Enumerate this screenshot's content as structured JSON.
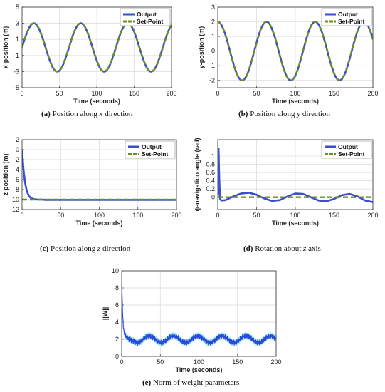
{
  "captions": [
    {
      "letter": "(a)",
      "text": " Position along ",
      "var": "x",
      "rest": " direction"
    },
    {
      "letter": "(b)",
      "text": " Position along ",
      "var": "y",
      "rest": " direction"
    },
    {
      "letter": "(c)",
      "text": " Position along ",
      "var": "z",
      "rest": " direction"
    },
    {
      "letter": "(d)",
      "text": " Rotation about ",
      "var": "z",
      "rest": " axis"
    },
    {
      "letter": "(e)",
      "text": " Norm of weight parameters",
      "var": "",
      "rest": ""
    }
  ],
  "colors": {
    "output": "#3a4fd0",
    "setpoint": "#6b8e23",
    "weights": "#2a4bd8",
    "weights_band": "#7fe7ee",
    "grid": "#d9d9d9"
  },
  "chart_data": [
    {
      "type": "line",
      "xlabel": "Time (seconds)",
      "ylabel": "x-position (m)",
      "xlim": [
        0,
        200
      ],
      "ylim": [
        -5,
        5
      ],
      "xticks": [
        0,
        50,
        100,
        150,
        200
      ],
      "yticks": [
        -5,
        -3,
        -1,
        1,
        3,
        5
      ],
      "grid": true,
      "legend": "top-right",
      "series": [
        {
          "name": "Output",
          "style": "solid",
          "amplitude": 3,
          "period": 62.8,
          "phase": "sin",
          "x": [
            0,
            15.7,
            31.4,
            47.1,
            62.8,
            78.5,
            94.2,
            109.9,
            125.6,
            141.3,
            157,
            172.7,
            188.4,
            200
          ],
          "y": [
            0,
            3,
            0,
            -3,
            0,
            3,
            0,
            -3,
            0,
            3,
            0,
            -3,
            0,
            2.6
          ]
        },
        {
          "name": "Set-Point",
          "style": "dashed",
          "amplitude": 3,
          "period": 62.8,
          "phase": "sin",
          "x": [
            0,
            15.7,
            31.4,
            47.1,
            62.8,
            78.5,
            94.2,
            109.9,
            125.6,
            141.3,
            157,
            172.7,
            188.4,
            200
          ],
          "y": [
            0,
            3,
            0,
            -3,
            0,
            3,
            0,
            -3,
            0,
            3,
            0,
            -3,
            0,
            2.6
          ]
        }
      ]
    },
    {
      "type": "line",
      "xlabel": "Time (seconds)",
      "ylabel": "y-position (m)",
      "xlim": [
        0,
        200
      ],
      "ylim": [
        -2.5,
        3
      ],
      "xticks": [
        0,
        50,
        100,
        150,
        200
      ],
      "yticks": [
        -2,
        -1,
        0,
        1,
        2,
        3
      ],
      "grid": true,
      "legend": "top-right",
      "series": [
        {
          "name": "Output",
          "style": "solid",
          "amplitude": 2,
          "period": 62.8,
          "phase": "cos",
          "x": [
            0,
            15.7,
            31.4,
            47.1,
            62.8,
            78.5,
            94.2,
            109.9,
            125.6,
            141.3,
            157,
            172.7,
            188.4,
            200
          ],
          "y": [
            2,
            0,
            -2,
            0,
            2,
            0,
            -2,
            0,
            2,
            0,
            -2,
            0,
            2,
            1.0
          ]
        },
        {
          "name": "Set-Point",
          "style": "dashed",
          "amplitude": 2,
          "period": 62.8,
          "phase": "cos",
          "x": [
            0,
            15.7,
            31.4,
            47.1,
            62.8,
            78.5,
            94.2,
            109.9,
            125.6,
            141.3,
            157,
            172.7,
            188.4,
            200
          ],
          "y": [
            2,
            0,
            -2,
            0,
            2,
            0,
            -2,
            0,
            2,
            0,
            -2,
            0,
            2,
            1.0
          ]
        }
      ]
    },
    {
      "type": "line",
      "xlabel": "Time (seconds)",
      "ylabel": "z-position (m)",
      "xlim": [
        0,
        200
      ],
      "ylim": [
        -12,
        2
      ],
      "xticks": [
        0,
        50,
        100,
        150,
        200
      ],
      "yticks": [
        -12,
        -10,
        -8,
        -6,
        -4,
        -2,
        0,
        2
      ],
      "grid": true,
      "legend": "top-right",
      "series": [
        {
          "name": "Output",
          "style": "solid",
          "x": [
            0,
            2,
            4,
            6,
            8,
            10,
            12,
            15,
            20,
            25,
            30,
            50,
            100,
            150,
            200
          ],
          "y": [
            0,
            -4.2,
            -6.7,
            -8.2,
            -9.0,
            -9.5,
            -9.7,
            -9.9,
            -10.0,
            -10.0,
            -10.05,
            -10.05,
            -10.05,
            -10.05,
            -10.05
          ]
        },
        {
          "name": "Set-Point",
          "style": "dashed",
          "x": [
            0,
            200
          ],
          "y": [
            -10,
            -10
          ]
        }
      ]
    },
    {
      "type": "line",
      "xlabel": "Time (seconds)",
      "ylabel": "ψ-navigation angle (rad)",
      "xlim": [
        0,
        200
      ],
      "ylim": [
        -0.3,
        1.4
      ],
      "xticks": [
        0,
        50,
        100,
        150,
        200
      ],
      "yticks": [
        0,
        0.2,
        0.4,
        0.6,
        0.8,
        1
      ],
      "grid": true,
      "legend": "top-right",
      "series": [
        {
          "name": "Output",
          "style": "solid",
          "x": [
            0,
            0.5,
            1,
            2,
            3,
            5,
            10,
            20,
            30,
            40,
            50,
            60,
            70,
            80,
            90,
            100,
            110,
            120,
            130,
            140,
            150,
            160,
            170,
            180,
            190,
            200
          ],
          "y": [
            0,
            0.2,
            1.2,
            0.4,
            -0.05,
            -0.08,
            -0.07,
            0.02,
            0.09,
            0.11,
            0.06,
            -0.03,
            -0.09,
            -0.07,
            0.02,
            0.09,
            0.08,
            0.0,
            -0.08,
            -0.1,
            -0.04,
            0.05,
            0.08,
            0.02,
            -0.08,
            -0.12
          ]
        },
        {
          "name": "Set-Point",
          "style": "dashed",
          "x": [
            0,
            200
          ],
          "y": [
            0,
            0
          ]
        }
      ]
    },
    {
      "type": "line",
      "xlabel": "Time (seconds)",
      "ylabel": "||W||",
      "xlim": [
        0,
        200
      ],
      "ylim": [
        0,
        10
      ],
      "xticks": [
        0,
        50,
        100,
        150,
        200
      ],
      "yticks": [
        0,
        2,
        4,
        6,
        8,
        10
      ],
      "grid": true,
      "legend": "none",
      "series": [
        {
          "style": "solid",
          "x": [
            0,
            0.5,
            1,
            2,
            3,
            5,
            8,
            10,
            20,
            30,
            40,
            50,
            60,
            70,
            80,
            90,
            100,
            110,
            120,
            130,
            140,
            150,
            160,
            170,
            180,
            190,
            200
          ],
          "y": [
            10,
            7.5,
            5.5,
            3.6,
            2.9,
            2.4,
            2.1,
            2.0,
            1.6,
            2.4,
            1.6,
            2.4,
            1.6,
            2.4,
            1.6,
            2.4,
            1.6,
            2.4,
            1.6,
            2.4,
            1.6,
            2.4,
            1.6,
            2.4,
            1.6,
            2.4,
            1.8
          ],
          "noise_amplitude": 0.35
        }
      ]
    }
  ]
}
